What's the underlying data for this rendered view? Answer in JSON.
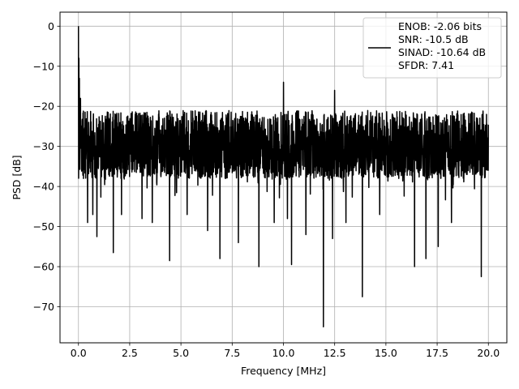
{
  "chart_data": {
    "type": "line",
    "title": "",
    "xlabel": "Frequency [MHz]",
    "ylabel": "PSD [dB]",
    "xlim": [
      -0.9,
      20.9
    ],
    "ylim": [
      -79,
      3.5
    ],
    "xticks": [
      0.0,
      2.5,
      5.0,
      7.5,
      10.0,
      12.5,
      15.0,
      17.5,
      20.0
    ],
    "xtick_labels": [
      "0.0",
      "2.5",
      "5.0",
      "7.5",
      "10.0",
      "12.5",
      "15.0",
      "17.5",
      "20.0"
    ],
    "yticks": [
      0,
      -10,
      -20,
      -30,
      -40,
      -50,
      -60,
      -70
    ],
    "ytick_labels": [
      "0",
      "−10",
      "−20",
      "−30",
      "−40",
      "−50",
      "−60",
      "−70"
    ],
    "grid": true,
    "legend_position": "top-right",
    "series": [
      {
        "name": "ENOB: -2.06 bits\nSNR: -10.5 dB\nSINAD: -10.64 dB\nSFDR: 7.41",
        "color": "#000000",
        "noise_floor_db": -28,
        "envelope_top_db": -21,
        "envelope_bottom_db": -38,
        "x_start": 0.0,
        "x_end": 20.0,
        "peak_points": [
          {
            "x": 0.0,
            "y": 0.0
          },
          {
            "x": 0.02,
            "y": -8
          },
          {
            "x": 0.05,
            "y": -13
          },
          {
            "x": 0.1,
            "y": -18
          },
          {
            "x": 10.0,
            "y": -14
          },
          {
            "x": 12.5,
            "y": -16
          }
        ],
        "dip_points": [
          {
            "x": 0.25,
            "y": -38
          },
          {
            "x": 0.45,
            "y": -49
          },
          {
            "x": 0.7,
            "y": -47
          },
          {
            "x": 0.9,
            "y": -52.5
          },
          {
            "x": 1.7,
            "y": -56.5
          },
          {
            "x": 2.1,
            "y": -47
          },
          {
            "x": 3.1,
            "y": -48
          },
          {
            "x": 3.6,
            "y": -49
          },
          {
            "x": 4.45,
            "y": -58.5
          },
          {
            "x": 5.3,
            "y": -47
          },
          {
            "x": 6.3,
            "y": -51
          },
          {
            "x": 6.9,
            "y": -58
          },
          {
            "x": 7.8,
            "y": -54
          },
          {
            "x": 8.8,
            "y": -60
          },
          {
            "x": 9.55,
            "y": -49
          },
          {
            "x": 10.2,
            "y": -48
          },
          {
            "x": 10.4,
            "y": -59.5
          },
          {
            "x": 11.1,
            "y": -52
          },
          {
            "x": 11.95,
            "y": -75
          },
          {
            "x": 12.4,
            "y": -53
          },
          {
            "x": 13.05,
            "y": -49
          },
          {
            "x": 13.85,
            "y": -67.5
          },
          {
            "x": 14.7,
            "y": -47
          },
          {
            "x": 16.4,
            "y": -60
          },
          {
            "x": 16.95,
            "y": -58
          },
          {
            "x": 17.55,
            "y": -55
          },
          {
            "x": 18.2,
            "y": -49
          },
          {
            "x": 19.65,
            "y": -62.5
          }
        ]
      }
    ]
  }
}
